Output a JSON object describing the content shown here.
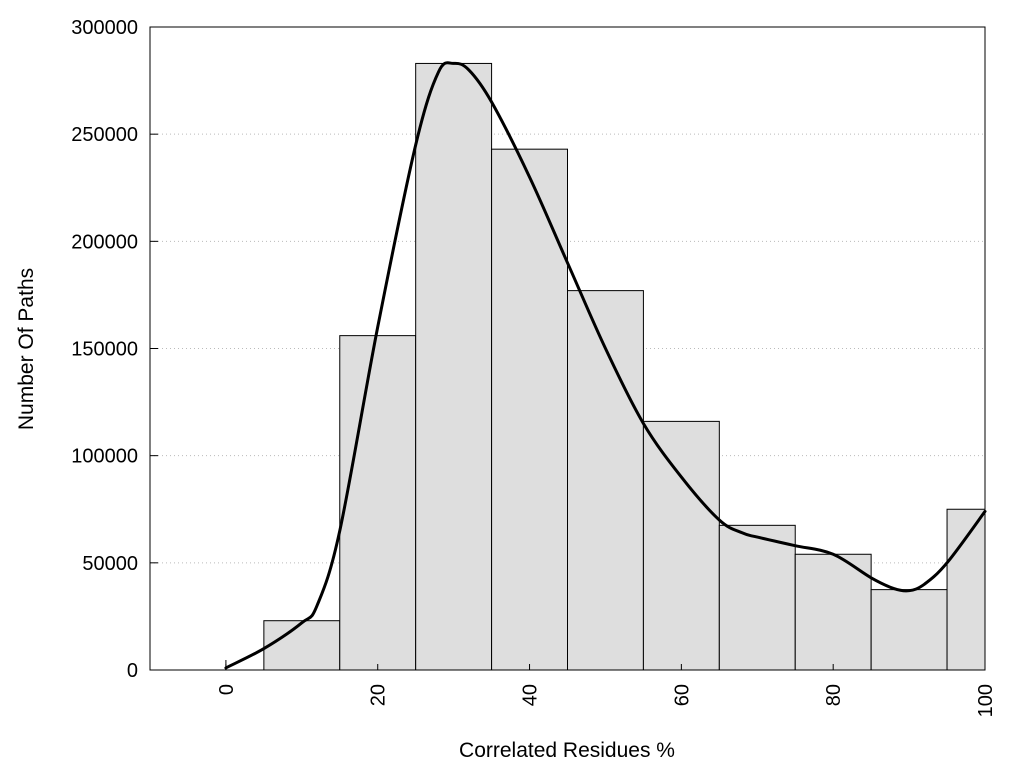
{
  "chart_data": {
    "type": "bar",
    "xlabel": "Correlated Residues %",
    "ylabel": "Number Of Paths",
    "xlim": [
      -10,
      100
    ],
    "ylim": [
      0,
      300000
    ],
    "x_ticks": [
      0,
      20,
      40,
      60,
      80,
      100
    ],
    "y_ticks": [
      0,
      50000,
      100000,
      150000,
      200000,
      250000,
      300000
    ],
    "grid": "horizontal-dotted",
    "bins": [
      {
        "start": -5,
        "end": 5,
        "value": 0
      },
      {
        "start": 5,
        "end": 15,
        "value": 23000
      },
      {
        "start": 15,
        "end": 25,
        "value": 156000
      },
      {
        "start": 25,
        "end": 35,
        "value": 283000
      },
      {
        "start": 35,
        "end": 45,
        "value": 243000
      },
      {
        "start": 45,
        "end": 55,
        "value": 177000
      },
      {
        "start": 55,
        "end": 65,
        "value": 116000
      },
      {
        "start": 65,
        "end": 75,
        "value": 67500
      },
      {
        "start": 75,
        "end": 85,
        "value": 54000
      },
      {
        "start": 85,
        "end": 95,
        "value": 37500
      },
      {
        "start": 95,
        "end": 100,
        "value": 75000
      }
    ],
    "curve": {
      "x": [
        0,
        5,
        10,
        12,
        15,
        20,
        25,
        28,
        30,
        32,
        35,
        40,
        45,
        50,
        55,
        60,
        65,
        68,
        70,
        75,
        80,
        85,
        88,
        90,
        92,
        95,
        100
      ],
      "y": [
        1000,
        10000,
        22000,
        30000,
        65000,
        160000,
        245000,
        279000,
        283000,
        280000,
        265000,
        230000,
        190000,
        150000,
        115000,
        90000,
        70000,
        64000,
        62000,
        58000,
        54000,
        43000,
        38000,
        37000,
        40000,
        50000,
        74000
      ]
    },
    "colors": {
      "bar_fill": "#dedede",
      "bar_stroke": "#000000",
      "curve": "#000000",
      "grid": "#bbbbbb"
    }
  }
}
